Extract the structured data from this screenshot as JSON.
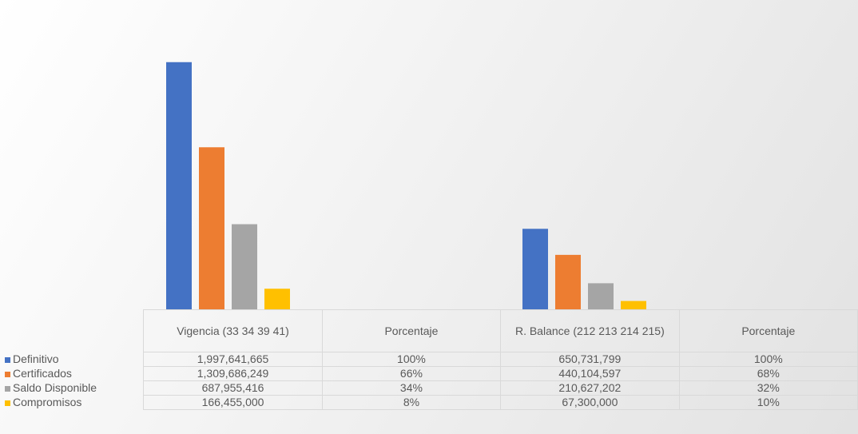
{
  "chart_data": {
    "type": "bar",
    "categories": [
      "Vigencia (33 34 39 41)",
      "Porcentaje",
      "R. Balance (212 213 214 215)",
      "Porcentaje"
    ],
    "series": [
      {
        "name": "Definitivo",
        "color": "#4472c4",
        "values": [
          1997641665,
          100,
          650731799,
          100
        ],
        "value_labels": [
          "1,997,641,665",
          "100%",
          "650,731,799",
          "100%"
        ]
      },
      {
        "name": "Certificados",
        "color": "#ed7d31",
        "values": [
          1309686249,
          66,
          440104597,
          68
        ],
        "value_labels": [
          "1,309,686,249",
          "66%",
          "440,104,597",
          "68%"
        ]
      },
      {
        "name": "Saldo Disponible",
        "color": "#a5a5a5",
        "values": [
          687955416,
          34,
          210627202,
          32
        ],
        "value_labels": [
          "687,955,416",
          "34%",
          "210,627,202",
          "32%"
        ]
      },
      {
        "name": "Compromisos",
        "color": "#ffc000",
        "values": [
          166455000,
          8,
          67300000,
          10
        ],
        "value_labels": [
          "166,455,000",
          "8%",
          "67,300,000",
          "10%"
        ]
      }
    ],
    "ylim": [
      0,
      2500000000
    ]
  }
}
